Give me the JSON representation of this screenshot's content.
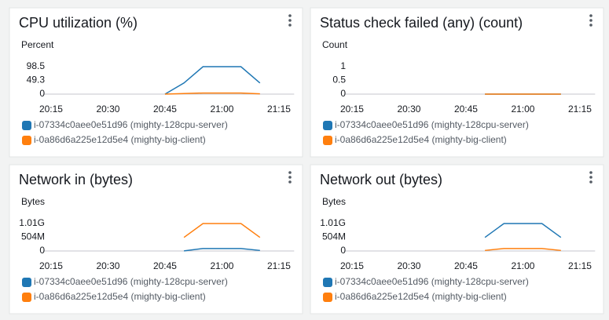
{
  "chart_data": [
    {
      "type": "line",
      "title": "CPU utilization (%)",
      "y_label": "Percent",
      "x": [
        "20:45",
        "20:50",
        "20:55",
        "21:00",
        "21:05",
        "21:10"
      ],
      "xlim": [
        "20:13",
        "21:19"
      ],
      "xticks": [
        "20:15",
        "20:30",
        "20:45",
        "21:00",
        "21:15"
      ],
      "ylim": [
        0,
        98.5
      ],
      "yticks": [
        0,
        49.3,
        98.5
      ],
      "series": [
        {
          "name": "i-07334c0aee0e51d96 (mighty-128cpu-server)",
          "color": "#1f77b4",
          "values": [
            0,
            40,
            98.5,
            98.5,
            98.5,
            40
          ]
        },
        {
          "name": "i-0a86d6a225e12d5e4 (mighty-big-client)",
          "color": "#ff7f0e",
          "values": [
            0,
            2,
            4,
            4,
            4,
            1
          ]
        }
      ]
    },
    {
      "type": "line",
      "title": "Status check failed (any) (count)",
      "y_label": "Count",
      "x": [
        "20:45",
        "20:50",
        "20:55",
        "21:00",
        "21:05",
        "21:10"
      ],
      "xlim": [
        "20:13",
        "21:19"
      ],
      "xticks": [
        "20:15",
        "20:30",
        "20:45",
        "21:00",
        "21:15"
      ],
      "ylim": [
        0,
        1
      ],
      "yticks": [
        0,
        0.5,
        1
      ],
      "series": [
        {
          "name": "i-07334c0aee0e51d96 (mighty-128cpu-server)",
          "color": "#1f77b4",
          "values": [
            null,
            0,
            0,
            0,
            0,
            0
          ]
        },
        {
          "name": "i-0a86d6a225e12d5e4 (mighty-big-client)",
          "color": "#ff7f0e",
          "values": [
            null,
            0,
            0,
            0,
            0,
            0
          ]
        }
      ]
    },
    {
      "type": "line",
      "title": "Network in (bytes)",
      "y_label": "Bytes",
      "x": [
        "20:45",
        "20:50",
        "20:55",
        "21:00",
        "21:05",
        "21:10"
      ],
      "xlim": [
        "20:13",
        "21:19"
      ],
      "xticks": [
        "20:15",
        "20:30",
        "20:45",
        "21:00",
        "21:15"
      ],
      "ylim": [
        0,
        1010000000
      ],
      "yticks": [
        0,
        {
          "value": 504000000,
          "label": "504M"
        },
        {
          "value": 1010000000,
          "label": "1.01G"
        }
      ],
      "series": [
        {
          "name": "i-07334c0aee0e51d96 (mighty-128cpu-server)",
          "color": "#1f77b4",
          "values": [
            null,
            5000000,
            90000000,
            90000000,
            90000000,
            20000000
          ]
        },
        {
          "name": "i-0a86d6a225e12d5e4 (mighty-big-client)",
          "color": "#ff7f0e",
          "values": [
            null,
            500000000,
            1010000000,
            1010000000,
            1010000000,
            500000000
          ]
        }
      ]
    },
    {
      "type": "line",
      "title": "Network out (bytes)",
      "y_label": "Bytes",
      "x": [
        "20:45",
        "20:50",
        "20:55",
        "21:00",
        "21:05",
        "21:10"
      ],
      "xlim": [
        "20:13",
        "21:19"
      ],
      "xticks": [
        "20:15",
        "20:30",
        "20:45",
        "21:00",
        "21:15"
      ],
      "ylim": [
        0,
        1010000000
      ],
      "yticks": [
        0,
        {
          "value": 504000000,
          "label": "504M"
        },
        {
          "value": 1010000000,
          "label": "1.01G"
        }
      ],
      "series": [
        {
          "name": "i-07334c0aee0e51d96 (mighty-128cpu-server)",
          "color": "#1f77b4",
          "values": [
            null,
            500000000,
            1010000000,
            1010000000,
            1010000000,
            500000000
          ]
        },
        {
          "name": "i-0a86d6a225e12d5e4 (mighty-big-client)",
          "color": "#ff7f0e",
          "values": [
            null,
            20000000,
            90000000,
            90000000,
            90000000,
            20000000
          ]
        }
      ]
    }
  ]
}
